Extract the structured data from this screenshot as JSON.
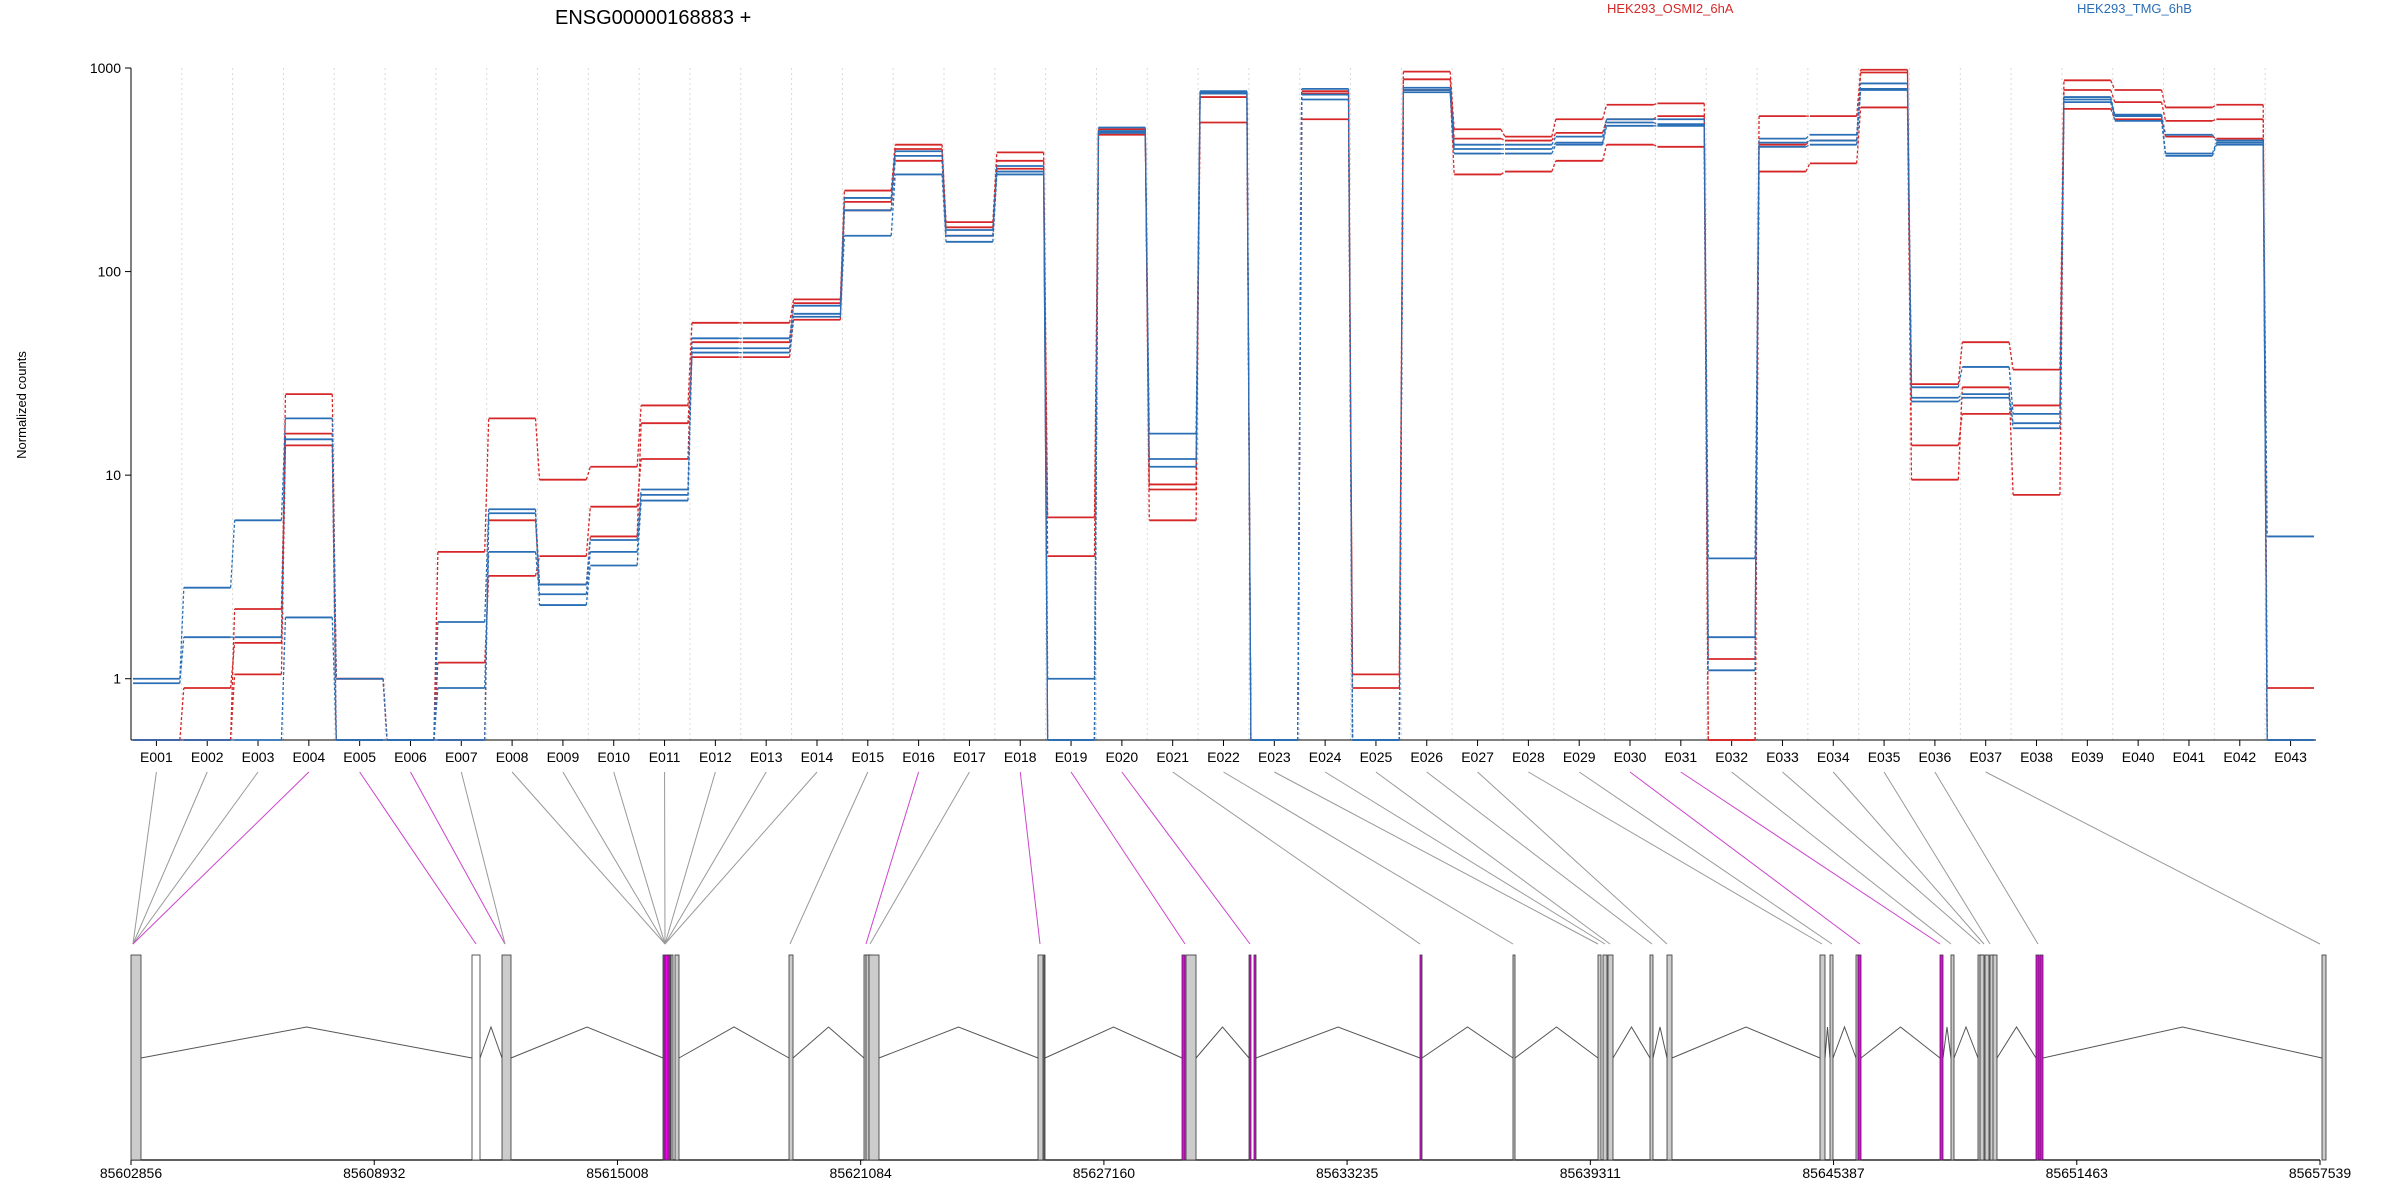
{
  "chart_data": {
    "type": "line",
    "title": "ENSG00000168883 +",
    "ylabel": "Normalized counts",
    "xlabel": "",
    "yscale": "log",
    "ylim": [
      0.5,
      1000
    ],
    "yticks": [
      "1",
      "10",
      "100",
      "1000"
    ],
    "grid": "vertical dotted",
    "colors": {
      "HEK293_OSMI2_6hA": "#d62728",
      "HEK293_TMG_6hB": "#2a6fb5",
      "highlight": "#ee00ee"
    },
    "legend": [
      {
        "label": "HEK293_OSMI2_6hA",
        "color": "#d62728"
      },
      {
        "label": "HEK293_TMG_6hB",
        "color": "#2a6fb5"
      }
    ],
    "categories": [
      "E001",
      "E002",
      "E003",
      "E004",
      "E005",
      "E006",
      "E007",
      "E008",
      "E009",
      "E010",
      "E011",
      "E012",
      "E013",
      "E014",
      "E015",
      "E016",
      "E017",
      "E018",
      "E019",
      "E020",
      "E021",
      "E022",
      "E023",
      "E024",
      "E025",
      "E026",
      "E027",
      "E028",
      "E029",
      "E030",
      "E031",
      "E032",
      "E033",
      "E034",
      "E035",
      "E036",
      "E037",
      "E038",
      "E039",
      "E040",
      "E041",
      "E042",
      "E043"
    ],
    "series": [
      {
        "group": "HEK293_OSMI2_6hA",
        "values": [
          0.5,
          0.9,
          1.5,
          25,
          1,
          0.5,
          4.2,
          19,
          9.5,
          11,
          22,
          56,
          56,
          73,
          250,
          420,
          175,
          385,
          6.2,
          500,
          6,
          750,
          0.5,
          770,
          1.05,
          960,
          500,
          460,
          560,
          660,
          670,
          1.25,
          580,
          580,
          980,
          28,
          45,
          33,
          870,
          780,
          640,
          660,
          0.9
        ]
      },
      {
        "group": "HEK293_OSMI2_6hA",
        "values": [
          0.5,
          0.5,
          2.2,
          16,
          1,
          0.5,
          1.2,
          3.2,
          4,
          7,
          12,
          45,
          45,
          70,
          220,
          400,
          165,
          350,
          4,
          480,
          8.5,
          720,
          0.5,
          750,
          0.9,
          880,
          450,
          440,
          480,
          560,
          580,
          0.5,
          420,
          440,
          950,
          14,
          20,
          22,
          780,
          680,
          550,
          560,
          0.5
        ]
      },
      {
        "group": "HEK293_OSMI2_6hA",
        "values": [
          0.5,
          0.5,
          1.05,
          14,
          0.5,
          0.5,
          0.5,
          6,
          2.9,
          5,
          18,
          38,
          38,
          58,
          200,
          350,
          150,
          320,
          0.5,
          470,
          9,
          540,
          0.5,
          560,
          0.5,
          780,
          300,
          310,
          350,
          420,
          410,
          0.5,
          310,
          340,
          640,
          9.5,
          27,
          8,
          630,
          560,
          460,
          450,
          0.5
        ]
      },
      {
        "group": "HEK293_TMG_6hB",
        "values": [
          1,
          2.8,
          6,
          19,
          1,
          0.5,
          1.9,
          6.8,
          2.9,
          4.8,
          8.5,
          47,
          47,
          68,
          230,
          390,
          160,
          330,
          1,
          510,
          16,
          770,
          0.5,
          790,
          0.5,
          800,
          420,
          420,
          460,
          560,
          560,
          3.9,
          450,
          470,
          840,
          27,
          34,
          20,
          720,
          590,
          470,
          440,
          5
        ]
      },
      {
        "group": "HEK293_TMG_6hB",
        "values": [
          0.95,
          1.6,
          1.6,
          15,
          0.5,
          0.5,
          0.9,
          4.2,
          2.6,
          4.2,
          8,
          42,
          42,
          62,
          200,
          370,
          150,
          310,
          0.5,
          490,
          12,
          760,
          0.5,
          740,
          0.5,
          780,
          400,
          400,
          430,
          540,
          530,
          1.6,
          430,
          440,
          790,
          24,
          25,
          18,
          700,
          580,
          380,
          430,
          0.5
        ]
      },
      {
        "group": "HEK293_TMG_6hB",
        "values": [
          0.5,
          0.5,
          0.5,
          2,
          0.5,
          0.5,
          0.5,
          6.5,
          2.3,
          3.6,
          7.5,
          40,
          40,
          60,
          150,
          300,
          140,
          300,
          0.5,
          480,
          11,
          750,
          0.5,
          700,
          0.5,
          760,
          380,
          380,
          420,
          520,
          520,
          1.1,
          410,
          420,
          780,
          23,
          24,
          17,
          680,
          550,
          370,
          420,
          0.5
        ]
      }
    ],
    "genome": {
      "coordinate_labels": [
        "85602856",
        "85608932",
        "85615008",
        "85621084",
        "85627160",
        "85633235",
        "85639311",
        "85645387",
        "85651463",
        "85657539"
      ],
      "exon_fill": {
        "E001": "grey",
        "E002": "white",
        "E003": "grey",
        "E004": "highlight",
        "E005": "highlight",
        "E006": "highlight",
        "E007": "grey",
        "E008": "grey",
        "E009": "grey",
        "E010": "grey",
        "E011": "grey",
        "E012": "grey",
        "E013": "grey",
        "E014": "grey",
        "E015": "grey",
        "E016": "highlight",
        "E017": "grey",
        "E018": "highlight",
        "E019": "highlight",
        "E020": "highlight",
        "E021": "grey",
        "E022": "grey",
        "E023": "grey",
        "E024": "grey",
        "E025": "grey",
        "E026": "grey",
        "E027": "grey",
        "E028": "grey",
        "E029": "grey",
        "E030": "highlight",
        "E031": "highlight",
        "E032": "grey",
        "E033": "grey",
        "E034": "grey",
        "E035": "grey",
        "E036": "grey",
        "E037": "grey",
        "E038": "grey",
        "E039": "highlight",
        "E040": "highlight",
        "E041": "highlight",
        "E042": "highlight",
        "E043": "grey"
      }
    }
  }
}
